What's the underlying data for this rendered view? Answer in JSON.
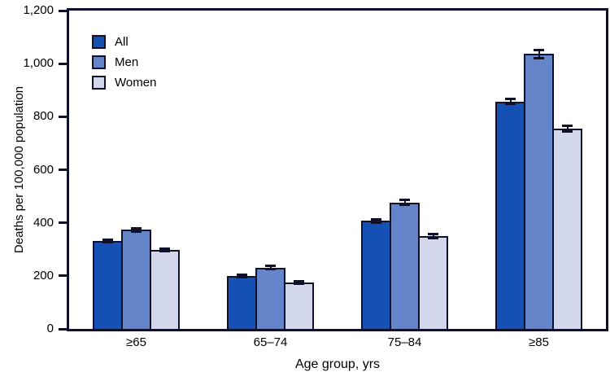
{
  "figure": {
    "background": "#ffffff",
    "frame_color": "#10102a",
    "text_color": "#000000"
  },
  "chart_data": {
    "type": "bar",
    "title": "",
    "categories": [
      "≥65",
      "65–74",
      "75–84",
      "≥85"
    ],
    "series": [
      {
        "name": "All",
        "color": "#1551b5",
        "values": [
          331,
          200,
          407,
          857
        ],
        "errors": [
          5,
          4,
          6,
          9
        ]
      },
      {
        "name": "Men",
        "color": "#6585cb",
        "values": [
          373,
          231,
          477,
          1036
        ],
        "errors": [
          6,
          6,
          9,
          16
        ]
      },
      {
        "name": "Women",
        "color": "#d2d7ec",
        "values": [
          297,
          174,
          350,
          755
        ],
        "errors": [
          5,
          5,
          7,
          10
        ]
      }
    ],
    "xlabel": "Age group, yrs",
    "ylabel": "Deaths per 100,000 population",
    "ylim": [
      0,
      1200
    ],
    "ytick_interval": 200,
    "ytick_labels": [
      "0",
      "200",
      "400",
      "600",
      "800",
      "1,000",
      "1,200"
    ],
    "legend_position": "top-left-inside",
    "grid": false,
    "error_bars": true
  }
}
